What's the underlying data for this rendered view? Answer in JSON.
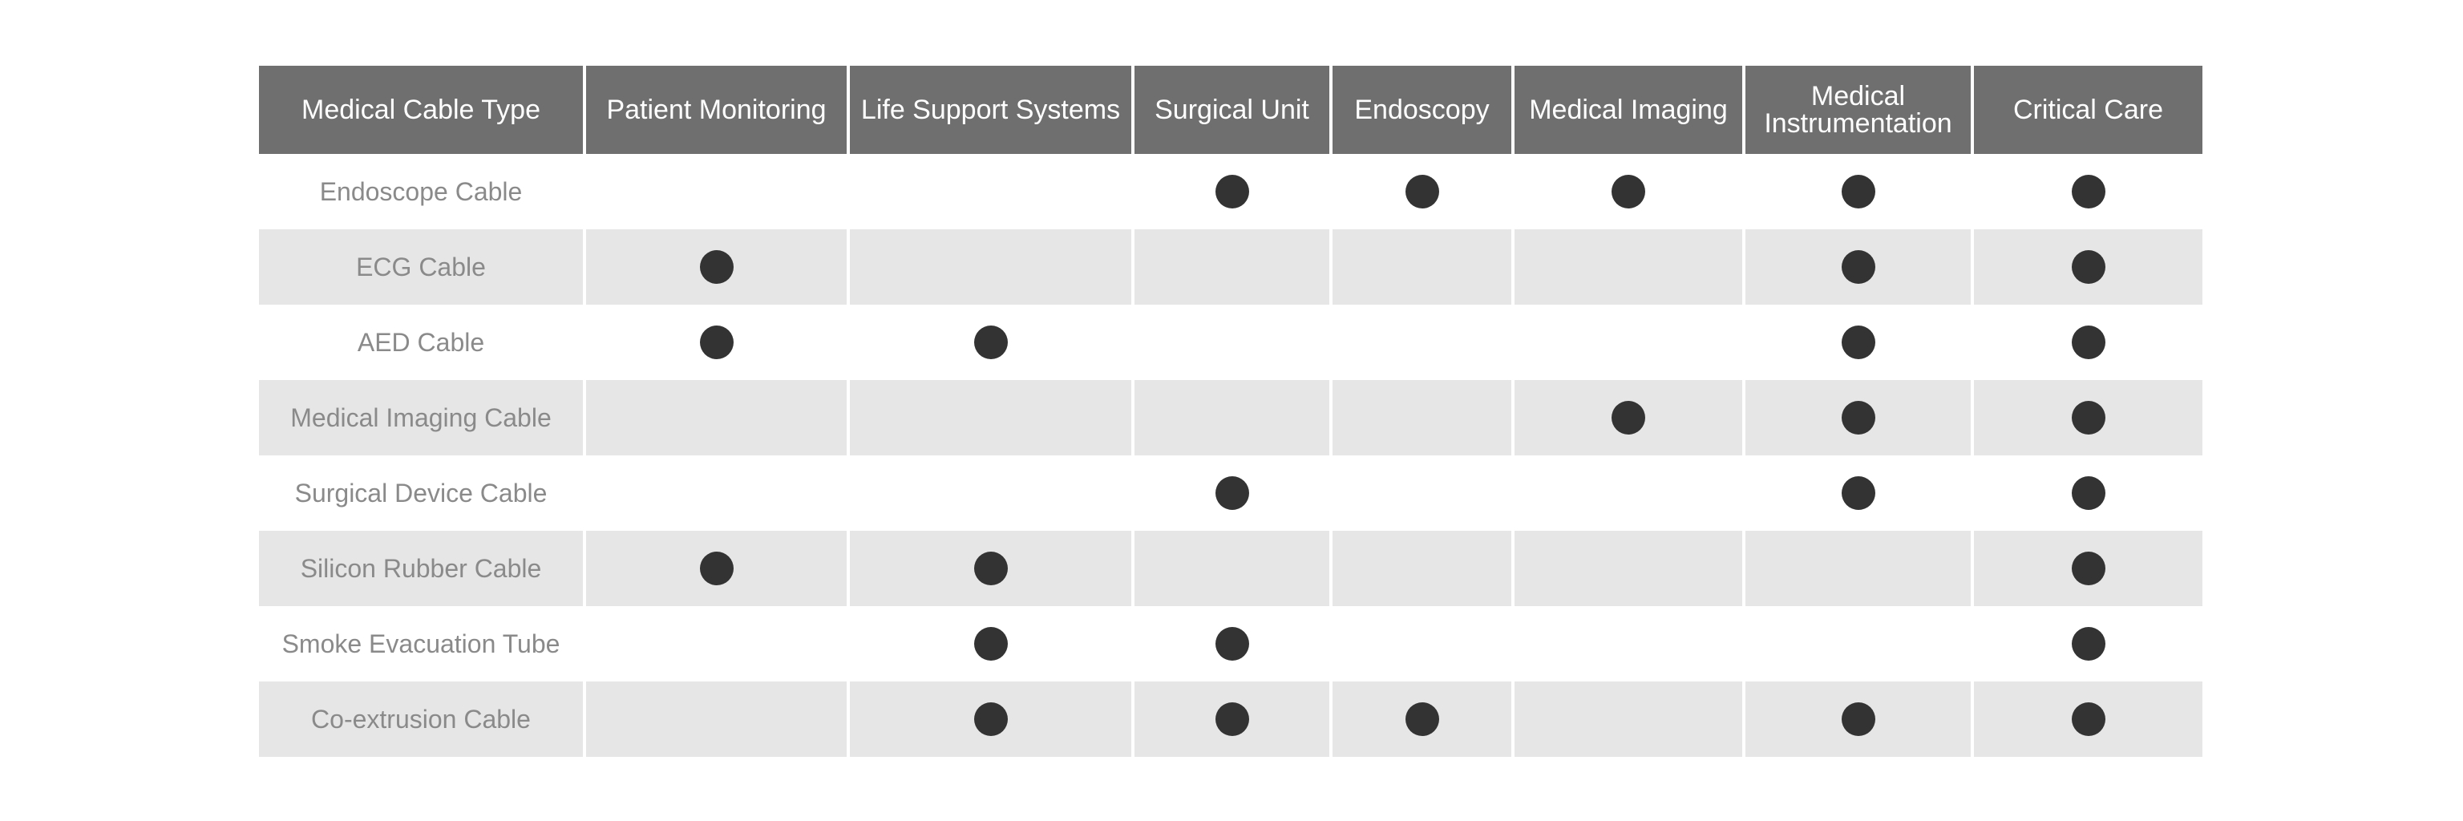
{
  "table": {
    "columns": [
      "Medical Cable Type",
      "Patient Monitoring",
      "Life Support Systems",
      "Surgical Unit",
      "Endoscopy",
      "Medical Imaging",
      "Medical Instrumentation",
      "Critical Care"
    ],
    "rows": [
      {
        "label": "Endoscope Cable",
        "cells": [
          false,
          false,
          true,
          true,
          true,
          true,
          true
        ]
      },
      {
        "label": "ECG Cable",
        "cells": [
          true,
          false,
          false,
          false,
          false,
          true,
          true
        ]
      },
      {
        "label": "AED Cable",
        "cells": [
          true,
          true,
          false,
          false,
          false,
          true,
          true
        ]
      },
      {
        "label": "Medical Imaging Cable",
        "cells": [
          false,
          false,
          false,
          false,
          true,
          true,
          true
        ]
      },
      {
        "label": "Surgical Device Cable",
        "cells": [
          false,
          false,
          true,
          false,
          false,
          true,
          true
        ]
      },
      {
        "label": "Silicon Rubber Cable",
        "cells": [
          true,
          true,
          false,
          false,
          false,
          false,
          true
        ]
      },
      {
        "label": "Smoke Evacuation Tube",
        "cells": [
          false,
          true,
          true,
          false,
          false,
          false,
          true
        ]
      },
      {
        "label": "Co-extrusion Cable",
        "cells": [
          false,
          true,
          true,
          true,
          false,
          true,
          true
        ]
      }
    ]
  }
}
